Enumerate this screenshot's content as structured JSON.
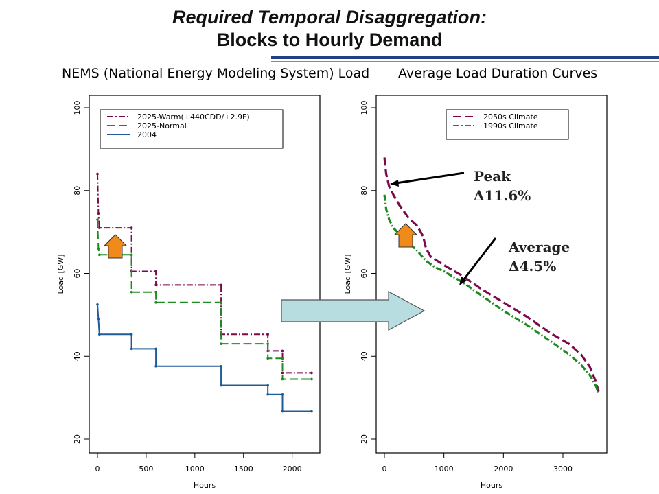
{
  "slide": {
    "title_line1": "Required Temporal Disaggregation:",
    "title_line2": "Blocks to Hourly Demand",
    "accent_color": "#1f3f8a"
  },
  "annotations": {
    "peak_label": "Peak",
    "peak_value": "Δ11.6%",
    "average_label": "Average",
    "average_value": "Δ4.5%"
  },
  "chart_data": [
    {
      "type": "line",
      "title": "NEMS (National Energy Modeling System) Load",
      "xlabel": "Hours",
      "ylabel": "Load [GW]",
      "xlim": [
        0,
        2200
      ],
      "ylim": [
        20,
        100
      ],
      "xticks": [
        0,
        500,
        1000,
        1500,
        2000
      ],
      "yticks": [
        20,
        40,
        60,
        80,
        100
      ],
      "legend_position": "top-right",
      "series": [
        {
          "name": "2025-Warm(+440CDD/+2.9F)",
          "color": "#7a0a4a",
          "style": "dashdot",
          "step": true,
          "points": [
            [
              0,
              84
            ],
            [
              10,
              74.5
            ],
            [
              20,
              71
            ],
            [
              350,
              71
            ],
            [
              350,
              60.5
            ],
            [
              600,
              60.5
            ],
            [
              600,
              57.2
            ],
            [
              1270,
              57.2
            ],
            [
              1270,
              45.3
            ],
            [
              1750,
              45.3
            ],
            [
              1750,
              41.3
            ],
            [
              1900,
              41.3
            ],
            [
              1900,
              36
            ],
            [
              2200,
              36
            ]
          ]
        },
        {
          "name": "2025-Normal",
          "color": "#1f8a1f",
          "style": "dashed",
          "step": true,
          "points": [
            [
              0,
              73
            ],
            [
              10,
              66
            ],
            [
              20,
              64.5
            ],
            [
              350,
              64.5
            ],
            [
              350,
              55.5
            ],
            [
              600,
              55.5
            ],
            [
              600,
              53
            ],
            [
              1270,
              53
            ],
            [
              1270,
              43
            ],
            [
              1750,
              43
            ],
            [
              1750,
              39.5
            ],
            [
              1900,
              39.5
            ],
            [
              1900,
              34.5
            ],
            [
              2200,
              34.5
            ]
          ]
        },
        {
          "name": "2004",
          "color": "#1f5a9a",
          "style": "solid",
          "step": true,
          "points": [
            [
              0,
              52.5
            ],
            [
              10,
              49
            ],
            [
              20,
              45.3
            ],
            [
              350,
              45.3
            ],
            [
              350,
              41.8
            ],
            [
              600,
              41.8
            ],
            [
              600,
              37.6
            ],
            [
              1270,
              37.6
            ],
            [
              1270,
              33
            ],
            [
              1750,
              33
            ],
            [
              1750,
              30.8
            ],
            [
              1900,
              30.8
            ],
            [
              1900,
              26.7
            ],
            [
              2200,
              26.7
            ]
          ]
        }
      ]
    },
    {
      "type": "line",
      "title": "Average Load Duration Curves",
      "xlabel": "Hours",
      "ylabel": "Load [GW]",
      "xlim": [
        0,
        3600
      ],
      "ylim": [
        20,
        100
      ],
      "xticks": [
        0,
        1000,
        2000,
        3000
      ],
      "yticks": [
        20,
        40,
        60,
        80,
        100
      ],
      "legend_position": "top-right",
      "series": [
        {
          "name": "2050s Climate",
          "color": "#7a0a4a",
          "style": "dashed",
          "points": [
            [
              0,
              88
            ],
            [
              30,
              84
            ],
            [
              80,
              81
            ],
            [
              150,
              79
            ],
            [
              250,
              76.5
            ],
            [
              400,
              73.5
            ],
            [
              550,
              71.5
            ],
            [
              650,
              69
            ],
            [
              700,
              66
            ],
            [
              780,
              64
            ],
            [
              1000,
              62
            ],
            [
              1300,
              59.5
            ],
            [
              1600,
              56.5
            ],
            [
              2000,
              53
            ],
            [
              2400,
              49.5
            ],
            [
              2800,
              45.5
            ],
            [
              3100,
              43
            ],
            [
              3300,
              40.5
            ],
            [
              3450,
              37.5
            ],
            [
              3550,
              34
            ],
            [
              3600,
              31.5
            ]
          ]
        },
        {
          "name": "1990s Climate",
          "color": "#1f8a1f",
          "style": "dashdot",
          "points": [
            [
              0,
              79
            ],
            [
              30,
              75.5
            ],
            [
              80,
              73
            ],
            [
              150,
              71
            ],
            [
              250,
              69.5
            ],
            [
              400,
              67.5
            ],
            [
              550,
              65.5
            ],
            [
              700,
              63
            ],
            [
              850,
              61.5
            ],
            [
              1000,
              60.5
            ],
            [
              1300,
              58
            ],
            [
              1600,
              55
            ],
            [
              2000,
              51
            ],
            [
              2400,
              47.5
            ],
            [
              2800,
              43.5
            ],
            [
              3100,
              40.5
            ],
            [
              3300,
              38
            ],
            [
              3450,
              35.5
            ],
            [
              3550,
              33
            ],
            [
              3600,
              31
            ]
          ]
        }
      ]
    }
  ]
}
